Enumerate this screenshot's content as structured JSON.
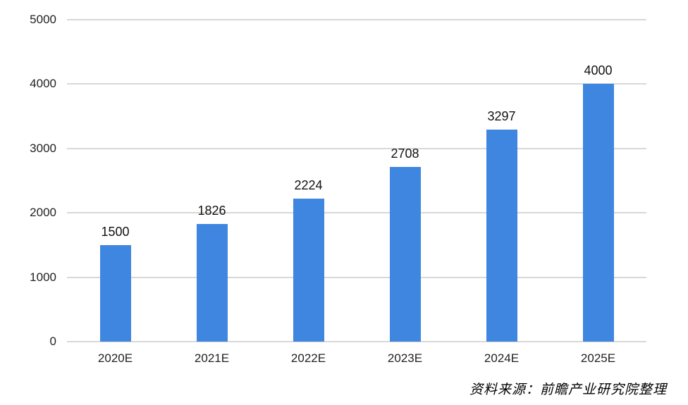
{
  "chart_data": {
    "type": "bar",
    "title": "",
    "xlabel": "",
    "ylabel": "",
    "categories": [
      "2020E",
      "2021E",
      "2022E",
      "2023E",
      "2024E",
      "2025E"
    ],
    "values": [
      1500,
      1826,
      2224,
      2708,
      3297,
      4000
    ],
    "data_labels": [
      "1500",
      "1826",
      "2224",
      "2708",
      "3297",
      "4000"
    ],
    "ylim": [
      0,
      5000
    ],
    "yticks": [
      0,
      1000,
      2000,
      3000,
      4000,
      5000
    ],
    "ytick_labels": [
      "0",
      "1000",
      "2000",
      "3000",
      "4000",
      "5000"
    ],
    "grid": "horizontal",
    "legend_position": "none",
    "bar_color": "#3f86e0",
    "gridline_color": "#d8d8d8",
    "label_color": "#1f1f1f"
  },
  "source": {
    "note": "资料来源：前瞻产业研究院整理"
  }
}
